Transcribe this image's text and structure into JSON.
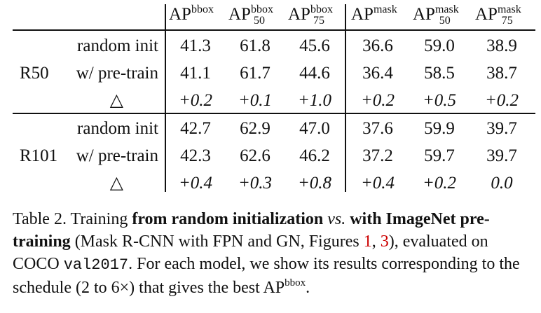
{
  "columns": [
    {
      "base": "AP",
      "sup": "bbox",
      "sub": ""
    },
    {
      "base": "AP",
      "sup": "bbox",
      "sub": "50"
    },
    {
      "base": "AP",
      "sup": "bbox",
      "sub": "75"
    },
    {
      "base": "AP",
      "sup": "mask",
      "sub": ""
    },
    {
      "base": "AP",
      "sup": "mask",
      "sub": "50"
    },
    {
      "base": "AP",
      "sup": "mask",
      "sub": "75"
    }
  ],
  "groups": [
    {
      "model": "R50",
      "rows": [
        {
          "label": "random init",
          "values": [
            "41.3",
            "61.8",
            "45.6",
            "36.6",
            "59.0",
            "38.9"
          ]
        },
        {
          "label": "w/ pre-train",
          "values": [
            "41.1",
            "61.7",
            "44.6",
            "36.4",
            "58.5",
            "38.7"
          ]
        },
        {
          "label": "△",
          "values": [
            "+0.2",
            "+0.1",
            "+1.0",
            "+0.2",
            "+0.5",
            "+0.2"
          ]
        }
      ]
    },
    {
      "model": "R101",
      "rows": [
        {
          "label": "random init",
          "values": [
            "42.7",
            "62.9",
            "47.0",
            "37.6",
            "59.9",
            "39.7"
          ]
        },
        {
          "label": "w/ pre-train",
          "values": [
            "42.3",
            "62.6",
            "46.2",
            "37.2",
            "59.7",
            "39.7"
          ]
        },
        {
          "label": "△",
          "values": [
            "+0.4",
            "+0.3",
            "+0.8",
            "+0.4",
            "+0.2",
            "0.0"
          ]
        }
      ]
    }
  ],
  "caption": {
    "prefix": "Table 2. Training ",
    "bold1": "from random initialization",
    "vs": "vs.",
    "bold2": "with ImageNet pre-training",
    "mid1": " (Mask R-CNN with FPN and GN, Figures ",
    "ref1": "1",
    "sep": ", ",
    "ref2": "3",
    "mid2": "), evaluated on COCO ",
    "code": "val2017",
    "mid3": ". For each model, we show its results corresponding to the schedule (2 to 6×) that gives the best AP",
    "sup": "bbox",
    "end": "."
  }
}
